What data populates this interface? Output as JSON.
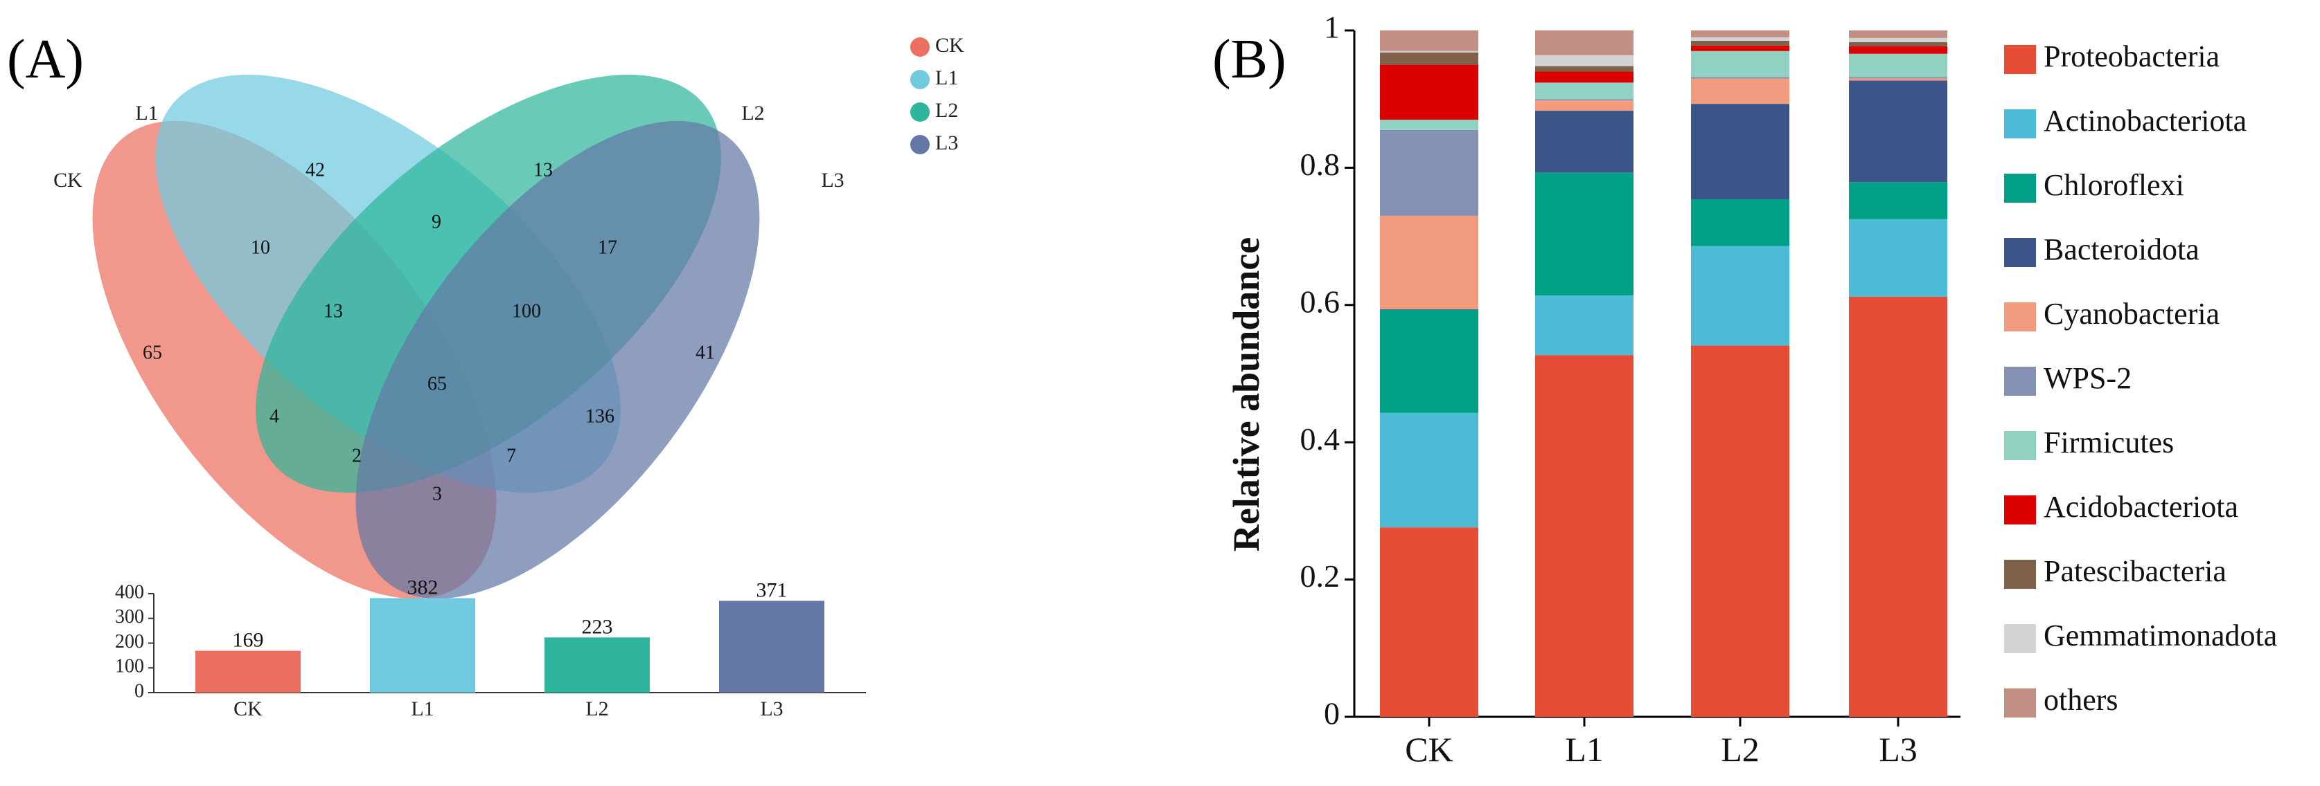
{
  "panel_a": {
    "label": "(A)",
    "sets": [
      {
        "name": "CK",
        "color": "#EC6F5F"
      },
      {
        "name": "L1",
        "color": "#70CBE0"
      },
      {
        "name": "L2",
        "color": "#2FB59B"
      },
      {
        "name": "L3",
        "color": "#6478A6"
      }
    ],
    "legend": [
      "CK",
      "L1",
      "L2",
      "L3"
    ],
    "venn_counts": [
      {
        "region": "CK only",
        "value": "65"
      },
      {
        "region": "L1 only",
        "value": "42"
      },
      {
        "region": "L2 only",
        "value": "13"
      },
      {
        "region": "L3 only",
        "value": "41"
      },
      {
        "region": "CK∩L1",
        "value": "10"
      },
      {
        "region": "L1∩L2",
        "value": "9"
      },
      {
        "region": "L2∩L3",
        "value": "17"
      },
      {
        "region": "CK∩L1∩L2",
        "value": "13"
      },
      {
        "region": "L1∩L2∩L3",
        "value": "100"
      },
      {
        "region": "CK∩L1∩L2∩L3",
        "value": "65"
      },
      {
        "region": "L1∩L3",
        "value": "136"
      },
      {
        "region": "CK∩L2",
        "value": "4"
      },
      {
        "region": "CK∩L2∩L3",
        "value": "2"
      },
      {
        "region": "CK∩L1∩L3",
        "value": "7"
      },
      {
        "region": "CK∩L3",
        "value": "3"
      }
    ]
  },
  "panel_b": {
    "label": "(B)"
  },
  "chart_data": [
    {
      "type": "bar",
      "title": "",
      "categories": [
        "CK",
        "L1",
        "L2",
        "L3"
      ],
      "values": [
        169,
        382,
        223,
        371
      ],
      "value_labels": [
        "169",
        "382",
        "223",
        "371"
      ],
      "colors": [
        "#EC6F5F",
        "#70CBE0",
        "#2FB59B",
        "#6478A6"
      ],
      "ylim": [
        0,
        400
      ],
      "yticks": [
        "0",
        "100",
        "200",
        "300",
        "400"
      ],
      "xlabel": "",
      "ylabel": ""
    },
    {
      "type": "bar",
      "stacked": true,
      "title": "",
      "xlabel": "",
      "ylabel": "Relative abundance",
      "ylim": [
        0,
        1
      ],
      "yticks": [
        "0",
        "0.2",
        "0.4",
        "0.6",
        "0.8",
        "1"
      ],
      "categories": [
        "CK",
        "L1",
        "L2",
        "L3"
      ],
      "legend_position": "right",
      "series": [
        {
          "name": "Proteobacteria",
          "color": "#E64B35",
          "values": [
            0.276,
            0.527,
            0.541,
            0.612
          ]
        },
        {
          "name": "Actinobacteriota",
          "color": "#4DBBD5",
          "values": [
            0.167,
            0.087,
            0.145,
            0.113
          ]
        },
        {
          "name": "Chloroflexi",
          "color": "#00A087",
          "values": [
            0.15,
            0.179,
            0.068,
            0.054
          ]
        },
        {
          "name": "Bacteroidota",
          "color": "#3C5488",
          "values": [
            0.001,
            0.09,
            0.139,
            0.148
          ]
        },
        {
          "name": "Cyanobacteria",
          "color": "#F39B7F",
          "values": [
            0.136,
            0.015,
            0.037,
            0.003
          ]
        },
        {
          "name": "WPS-2",
          "color": "#8491B4",
          "values": [
            0.125,
            0.002,
            0.002,
            0.002
          ]
        },
        {
          "name": "Firmicutes",
          "color": "#91D1C2",
          "values": [
            0.015,
            0.024,
            0.038,
            0.034
          ]
        },
        {
          "name": "Acidobacteriota",
          "color": "#DC0000",
          "values": [
            0.08,
            0.016,
            0.008,
            0.011
          ]
        },
        {
          "name": "Patescibacteria",
          "color": "#7E6148",
          "values": [
            0.018,
            0.008,
            0.007,
            0.006
          ]
        },
        {
          "name": "Gemmatimonadota",
          "color": "#D3D3D3",
          "values": [
            0.002,
            0.016,
            0.005,
            0.006
          ]
        },
        {
          "name": "others",
          "color": "#C38E84",
          "values": [
            0.03,
            0.036,
            0.01,
            0.011
          ]
        }
      ]
    }
  ]
}
